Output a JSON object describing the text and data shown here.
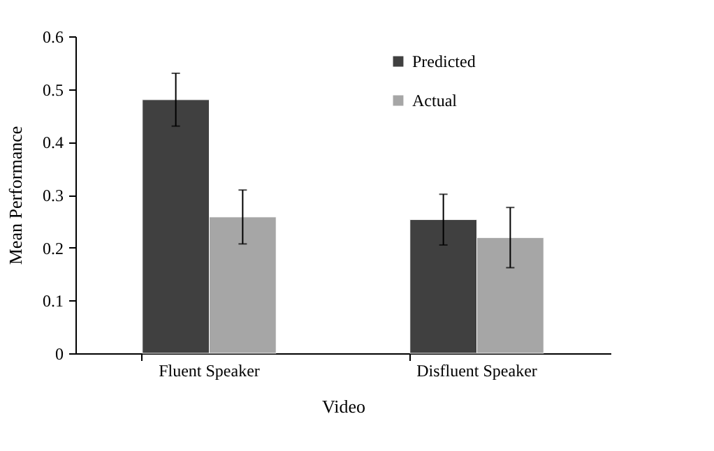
{
  "chart_data": {
    "type": "bar",
    "xlabel": "Video",
    "ylabel": "Mean Performance",
    "categories": [
      "Fluent Speaker",
      "Disfluent Speaker"
    ],
    "series": [
      {
        "name": "Predicted",
        "color": "#404040",
        "values": [
          0.48,
          0.253
        ],
        "errors": [
          0.05,
          0.048
        ]
      },
      {
        "name": "Actual",
        "color": "#a6a6a6",
        "values": [
          0.258,
          0.219
        ],
        "errors": [
          0.051,
          0.057
        ]
      }
    ],
    "ylim": [
      0,
      0.6
    ],
    "yticks": [
      0,
      0.1,
      0.2,
      0.3,
      0.4,
      0.5,
      0.6
    ],
    "grid": false,
    "legend": "top right"
  }
}
